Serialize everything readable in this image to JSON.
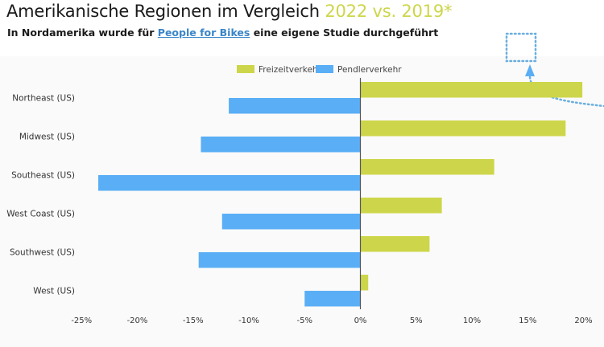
{
  "header": {
    "title_main": "Amerikanische Regionen im Vergleich",
    "title_accent": "2022 vs. 2019*",
    "subtitle_before": "In Nordamerika wurde für ",
    "subtitle_link": "People for Bikes",
    "subtitle_after": " eine eigene Studie durchgeführt"
  },
  "colors": {
    "freizeit": "#cdd64a",
    "pendler": "#5aaef5",
    "accent_title": "#cdd64a",
    "annotation": "#6aaee0",
    "axis": "#555555"
  },
  "annotation": {
    "icon": "dotted-box-with-arrow"
  },
  "chart_data": {
    "type": "bar",
    "orientation": "horizontal",
    "title": "Amerikanische Regionen im Vergleich 2022 vs. 2019*",
    "xlabel": "",
    "ylabel": "",
    "categories": [
      "Northeast (US)",
      "Midwest (US)",
      "Southeast (US)",
      "West Coast (US)",
      "Southwest (US)",
      "West (US)"
    ],
    "series": [
      {
        "name": "Freizeitverkehr",
        "values": [
          19.9,
          18.4,
          12.0,
          7.3,
          6.2,
          0.7
        ]
      },
      {
        "name": "Pendlerverkehr",
        "values": [
          -11.8,
          -14.3,
          -23.5,
          -12.4,
          -14.5,
          -5.0
        ]
      }
    ],
    "xlim": [
      -25,
      20
    ],
    "xticks": [
      -25,
      -20,
      -15,
      -10,
      -5,
      0,
      5,
      10,
      15,
      20
    ],
    "xtick_labels": [
      "-25%",
      "-20%",
      "-15%",
      "-10%",
      "-5%",
      "0%",
      "5%",
      "10%",
      "15%",
      "20%"
    ],
    "legend": {
      "position": "top-center",
      "entries": [
        "Freizeitverkehr",
        "Pendlerverkehr"
      ]
    },
    "grid": false
  }
}
